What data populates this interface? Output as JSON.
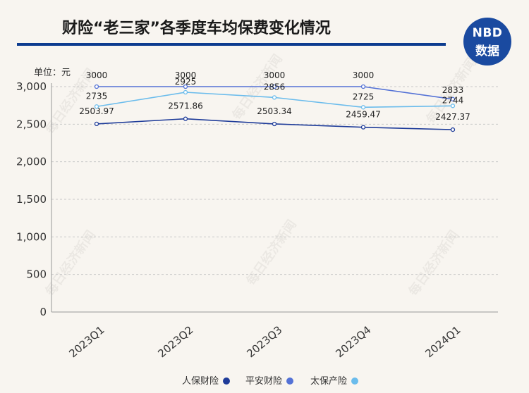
{
  "title": "财险“老三家”各季度车均保费变化情况",
  "logo": {
    "line1": "NBD",
    "line2": "数据"
  },
  "watermark": "每日经济新闻",
  "chart_data": {
    "type": "line",
    "unit_label": "单位：元",
    "categories": [
      "2023Q1",
      "2023Q2",
      "2023Q3",
      "2023Q4",
      "2024Q1"
    ],
    "series": [
      {
        "name": "人保财险",
        "color": "#1f3c99",
        "values": [
          2503.97,
          2571.86,
          2503.34,
          2459.47,
          2427.37
        ],
        "labels": [
          "2503.97",
          "2571.86",
          "2503.34",
          "2459.47",
          "2427.37"
        ]
      },
      {
        "name": "平安财险",
        "color": "#5472d6",
        "values": [
          3000,
          3000,
          3000,
          3000,
          2833
        ],
        "labels": [
          "3000",
          "3000",
          "3000",
          "3000",
          "2833"
        ]
      },
      {
        "name": "太保产险",
        "color": "#6bbcec",
        "values": [
          2735,
          2925,
          2856,
          2725,
          2744
        ],
        "labels": [
          "2735",
          "2925",
          "2856",
          "2725",
          "2744"
        ]
      }
    ],
    "y_ticks": [
      "0",
      "500",
      "1,000",
      "1,500",
      "2,000",
      "2,500",
      "3,000"
    ],
    "ylim": [
      0,
      3000
    ],
    "grid": true,
    "legend_position": "bottom"
  }
}
